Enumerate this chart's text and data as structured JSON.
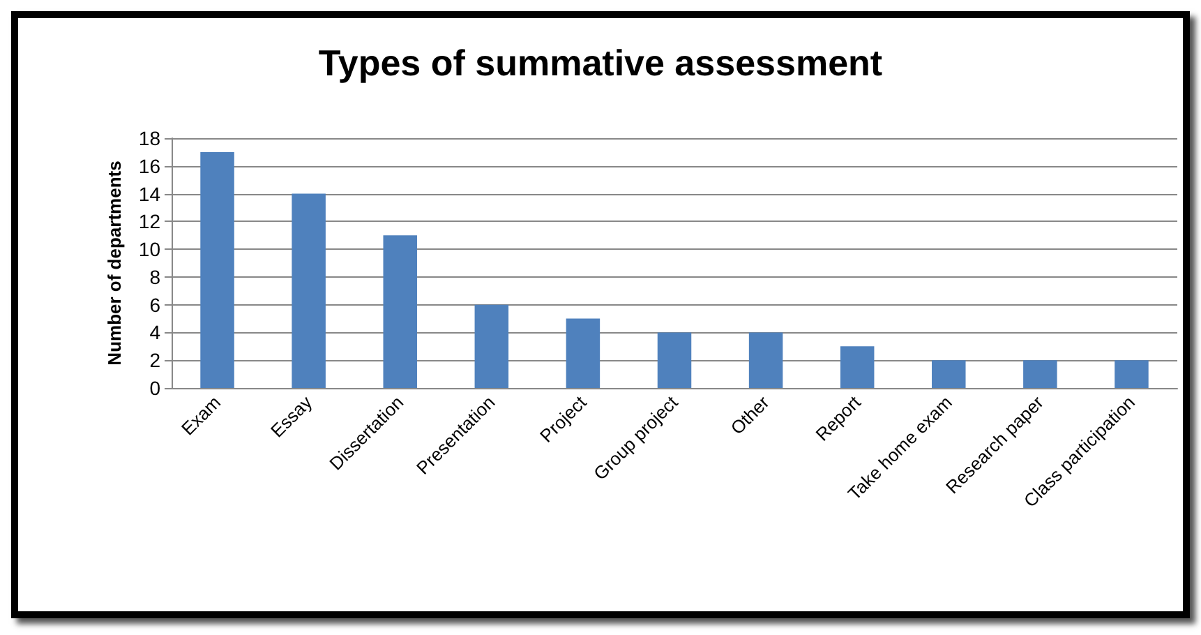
{
  "chart_data": {
    "type": "bar",
    "title": "Types of summative assessment",
    "ylabel": "Number of departments",
    "categories": [
      "Exam",
      "Essay",
      "Dissertation",
      "Presentation",
      "Project",
      "Group project",
      "Other",
      "Report",
      "Take home exam",
      "Research paper",
      "Class participation"
    ],
    "values": [
      17,
      14,
      11,
      6,
      5,
      4,
      4,
      3,
      2,
      2,
      2
    ],
    "color": "#4f81bd",
    "ylim": [
      0,
      18
    ],
    "yticks": [
      0,
      2,
      4,
      6,
      8,
      10,
      12,
      14,
      16,
      18
    ],
    "grid": "y"
  }
}
